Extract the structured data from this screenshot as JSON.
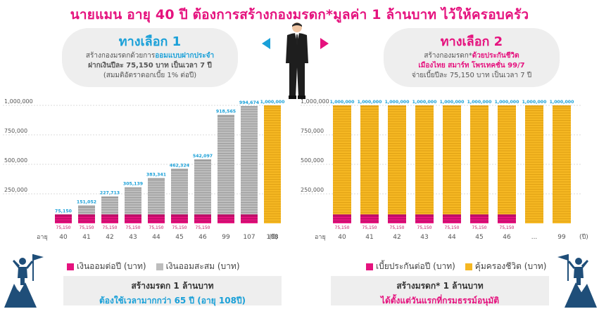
{
  "headline": "นายแมน อายุ 40 ปี ต้องการสร้างกองมรดก*มูลค่า 1 ล้านบาท ไว้ให้ครอบครัว",
  "option1": {
    "title": "ทางเลือก 1",
    "line1_pre": "สร้างกองมรดกด้วยการ",
    "line1_hl": "ออมแบบฝากประจำ",
    "line2": "ฝากเงินปีละ 75,150 บาท เป็นเวลา 7 ปี",
    "line3": "(สมมติอัตราดอกเบี้ย 1% ต่อปี)"
  },
  "option2": {
    "title": "ทางเลือก 2",
    "line1_pre": "สร้างกองมรดก*",
    "line1_hl": "ด้วยประกันชีวิต",
    "line2": "เมืองไทย สมาร์ท โพรเทคชั่น 99/7",
    "line3": "จ่ายเบี้ยปีละ 75,150 บาท เป็นเวลา 7 ปี"
  },
  "colors": {
    "pink": "#e5127e",
    "blue": "#1aa0d8",
    "gray": "#bdbdbd",
    "gold": "#f5b722"
  },
  "chart_data": [
    {
      "type": "bar",
      "xlabel": "อายุ",
      "x_unit": "(ปี)",
      "categories": [
        "40",
        "41",
        "42",
        "43",
        "44",
        "45",
        "46",
        "99",
        "107",
        "108"
      ],
      "ylim": [
        0,
        1000000
      ],
      "yticks": [
        "250,000",
        "500,000",
        "750,000",
        "1,000,000"
      ],
      "series": [
        {
          "name": "เงินออมต่อปี (บาท)",
          "values": [
            75150,
            75150,
            75150,
            75150,
            75150,
            75150,
            75150,
            75150,
            75150,
            75150
          ]
        },
        {
          "name": "เงินออมสะสม (บาท)",
          "values": [
            75150,
            151052,
            227713,
            305139,
            383341,
            462324,
            542097,
            918565,
            994674,
            1000000
          ]
        }
      ],
      "bar_labels": [
        "75,150",
        "151,052",
        "227,713",
        "305,139",
        "383,341",
        "462,324",
        "542,097",
        "918,565",
        "994,674",
        "1,000,000"
      ],
      "base_labels": [
        "75,150",
        "75,150",
        "75,150",
        "75,150",
        "75,150",
        "75,150",
        "75,150",
        "",
        "",
        ""
      ],
      "last_bar_series": "gold"
    },
    {
      "type": "bar",
      "xlabel": "อายุ",
      "x_unit": "(ปี)",
      "categories": [
        "40",
        "41",
        "42",
        "43",
        "44",
        "45",
        "46",
        "...",
        "99"
      ],
      "ylim": [
        0,
        1000000
      ],
      "yticks": [
        "250,000",
        "500,000",
        "750,000",
        "1,000,000"
      ],
      "series": [
        {
          "name": "เบี้ยประกันต่อปี (บาท)",
          "values": [
            75150,
            75150,
            75150,
            75150,
            75150,
            75150,
            75150,
            0,
            0
          ]
        },
        {
          "name": "คุ้มครองชีวิต (บาท)",
          "values": [
            1000000,
            1000000,
            1000000,
            1000000,
            1000000,
            1000000,
            1000000,
            1000000,
            1000000
          ]
        }
      ],
      "bar_labels": [
        "1,000,000",
        "1,000,000",
        "1,000,000",
        "1,000,000",
        "1,000,000",
        "1,000,000",
        "1,000,000",
        "1,000,000",
        "1,000,000"
      ],
      "base_labels": [
        "75,150",
        "75,150",
        "75,150",
        "75,150",
        "75,150",
        "75,150",
        "75,150",
        "",
        ""
      ]
    }
  ],
  "legend_left": {
    "a": "เงินออมต่อปี (บาท)",
    "b": "เงินออมสะสม (บาท)"
  },
  "legend_right": {
    "a": "เบี้ยประกันต่อปี (บาท)",
    "b": "คุ้มครองชีวิต (บาท)"
  },
  "footer_left": {
    "l1": "สร้างมรดก 1 ล้านบาท",
    "l2": "ต้องใช้เวลามากกว่า 65 ปี (อายุ 108ปี)"
  },
  "footer_right": {
    "l1": "สร้างมรดก* 1 ล้านบาท",
    "l2": "ได้ตั้งแต่วันแรกที่กรมธรรม์อนุมัติ"
  }
}
